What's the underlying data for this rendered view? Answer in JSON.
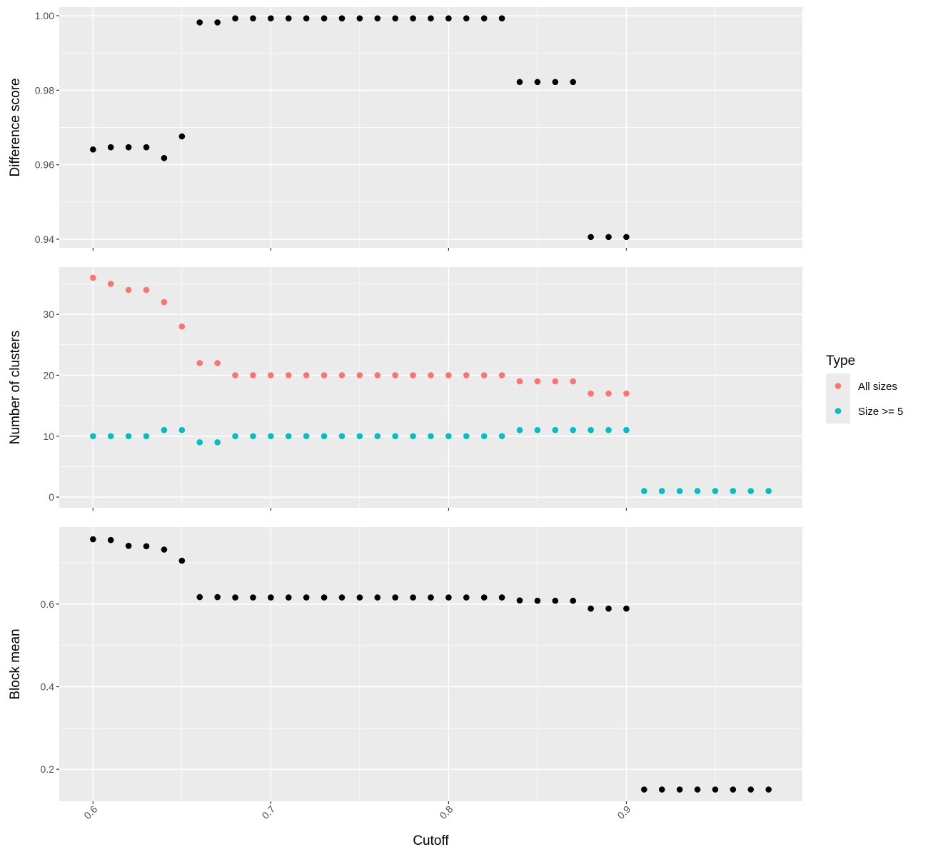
{
  "chart_data": {
    "type": "scatter",
    "x_label": "Cutoff",
    "x_range": [
      0.581,
      0.999
    ],
    "x_ticks": [
      0.6,
      0.7,
      0.8,
      0.9
    ],
    "x_tick_labels": [
      "0.6",
      "0.7",
      "0.8",
      "0.9"
    ],
    "grid": true,
    "legend": {
      "title": "Type",
      "position": "right",
      "entries": [
        {
          "label": "All sizes",
          "color": "#F8766D"
        },
        {
          "label": "Size >= 5",
          "color": "#00BFC4"
        }
      ]
    },
    "panels": [
      {
        "ylabel": "Difference score",
        "ylim": [
          0.9377,
          1.0023
        ],
        "yticks": [
          0.94,
          0.96,
          0.98,
          1.0
        ],
        "ytick_labels": [
          "0.94",
          "0.96",
          "0.98",
          "1.00"
        ],
        "series": [
          {
            "color": "#000000",
            "x": [
              0.6,
              0.61,
              0.62,
              0.63,
              0.64,
              0.65,
              0.66,
              0.67,
              0.68,
              0.69,
              0.7,
              0.71,
              0.72,
              0.73,
              0.74,
              0.75,
              0.76,
              0.77,
              0.78,
              0.79,
              0.8,
              0.81,
              0.82,
              0.83,
              0.84,
              0.85,
              0.86,
              0.87,
              0.88,
              0.89,
              0.9
            ],
            "y": [
              0.9641,
              0.9647,
              0.9647,
              0.9647,
              0.9618,
              0.9676,
              0.9982,
              0.9982,
              0.9993,
              0.9993,
              0.9993,
              0.9993,
              0.9993,
              0.9993,
              0.9993,
              0.9993,
              0.9993,
              0.9993,
              0.9993,
              0.9993,
              0.9993,
              0.9993,
              0.9993,
              0.9993,
              0.9822,
              0.9822,
              0.9822,
              0.9822,
              0.9406,
              0.9406,
              0.9406
            ]
          }
        ]
      },
      {
        "ylabel": "Number of clusters",
        "ylim": [
          -1.75,
          37.75
        ],
        "yticks": [
          0,
          10,
          20,
          30
        ],
        "ytick_labels": [
          "0",
          "10",
          "20",
          "30"
        ],
        "series": [
          {
            "name": "All sizes",
            "color": "#F8766D",
            "x": [
              0.6,
              0.61,
              0.62,
              0.63,
              0.64,
              0.65,
              0.66,
              0.67,
              0.68,
              0.69,
              0.7,
              0.71,
              0.72,
              0.73,
              0.74,
              0.75,
              0.76,
              0.77,
              0.78,
              0.79,
              0.8,
              0.81,
              0.82,
              0.83,
              0.84,
              0.85,
              0.86,
              0.87,
              0.88,
              0.89,
              0.9
            ],
            "y": [
              36,
              35,
              34,
              34,
              32,
              28,
              22,
              22,
              20,
              20,
              20,
              20,
              20,
              20,
              20,
              20,
              20,
              20,
              20,
              20,
              20,
              20,
              20,
              20,
              19,
              19,
              19,
              19,
              17,
              17,
              17
            ]
          },
          {
            "name": "Size >= 5",
            "color": "#00BFC4",
            "x": [
              0.6,
              0.61,
              0.62,
              0.63,
              0.64,
              0.65,
              0.66,
              0.67,
              0.68,
              0.69,
              0.7,
              0.71,
              0.72,
              0.73,
              0.74,
              0.75,
              0.76,
              0.77,
              0.78,
              0.79,
              0.8,
              0.81,
              0.82,
              0.83,
              0.84,
              0.85,
              0.86,
              0.87,
              0.88,
              0.89,
              0.9,
              0.91,
              0.92,
              0.93,
              0.94,
              0.95,
              0.96,
              0.97,
              0.98
            ],
            "y": [
              10,
              10,
              10,
              10,
              11,
              11,
              9,
              9,
              10,
              10,
              10,
              10,
              10,
              10,
              10,
              10,
              10,
              10,
              10,
              10,
              10,
              10,
              10,
              10,
              11,
              11,
              11,
              11,
              11,
              11,
              11,
              1,
              1,
              1,
              1,
              1,
              1,
              1,
              1
            ]
          }
        ]
      },
      {
        "ylabel": "Block mean",
        "ylim": [
          0.1225,
          0.7865
        ],
        "yticks": [
          0.2,
          0.4,
          0.6
        ],
        "ytick_labels": [
          "0.2",
          "0.4",
          "0.6"
        ],
        "series": [
          {
            "color": "#000000",
            "x": [
              0.6,
              0.61,
              0.62,
              0.63,
              0.64,
              0.65,
              0.66,
              0.67,
              0.68,
              0.69,
              0.7,
              0.71,
              0.72,
              0.73,
              0.74,
              0.75,
              0.76,
              0.77,
              0.78,
              0.79,
              0.8,
              0.81,
              0.82,
              0.83,
              0.84,
              0.85,
              0.86,
              0.87,
              0.88,
              0.89,
              0.9,
              0.91,
              0.92,
              0.93,
              0.94,
              0.95,
              0.96,
              0.97,
              0.98
            ],
            "y": [
              0.757,
              0.755,
              0.741,
              0.74,
              0.732,
              0.705,
              0.617,
              0.617,
              0.616,
              0.616,
              0.616,
              0.616,
              0.616,
              0.616,
              0.616,
              0.616,
              0.616,
              0.616,
              0.616,
              0.616,
              0.616,
              0.616,
              0.616,
              0.616,
              0.609,
              0.608,
              0.608,
              0.608,
              0.589,
              0.589,
              0.589,
              0.151,
              0.151,
              0.151,
              0.151,
              0.151,
              0.151,
              0.151,
              0.151
            ]
          }
        ]
      }
    ]
  }
}
